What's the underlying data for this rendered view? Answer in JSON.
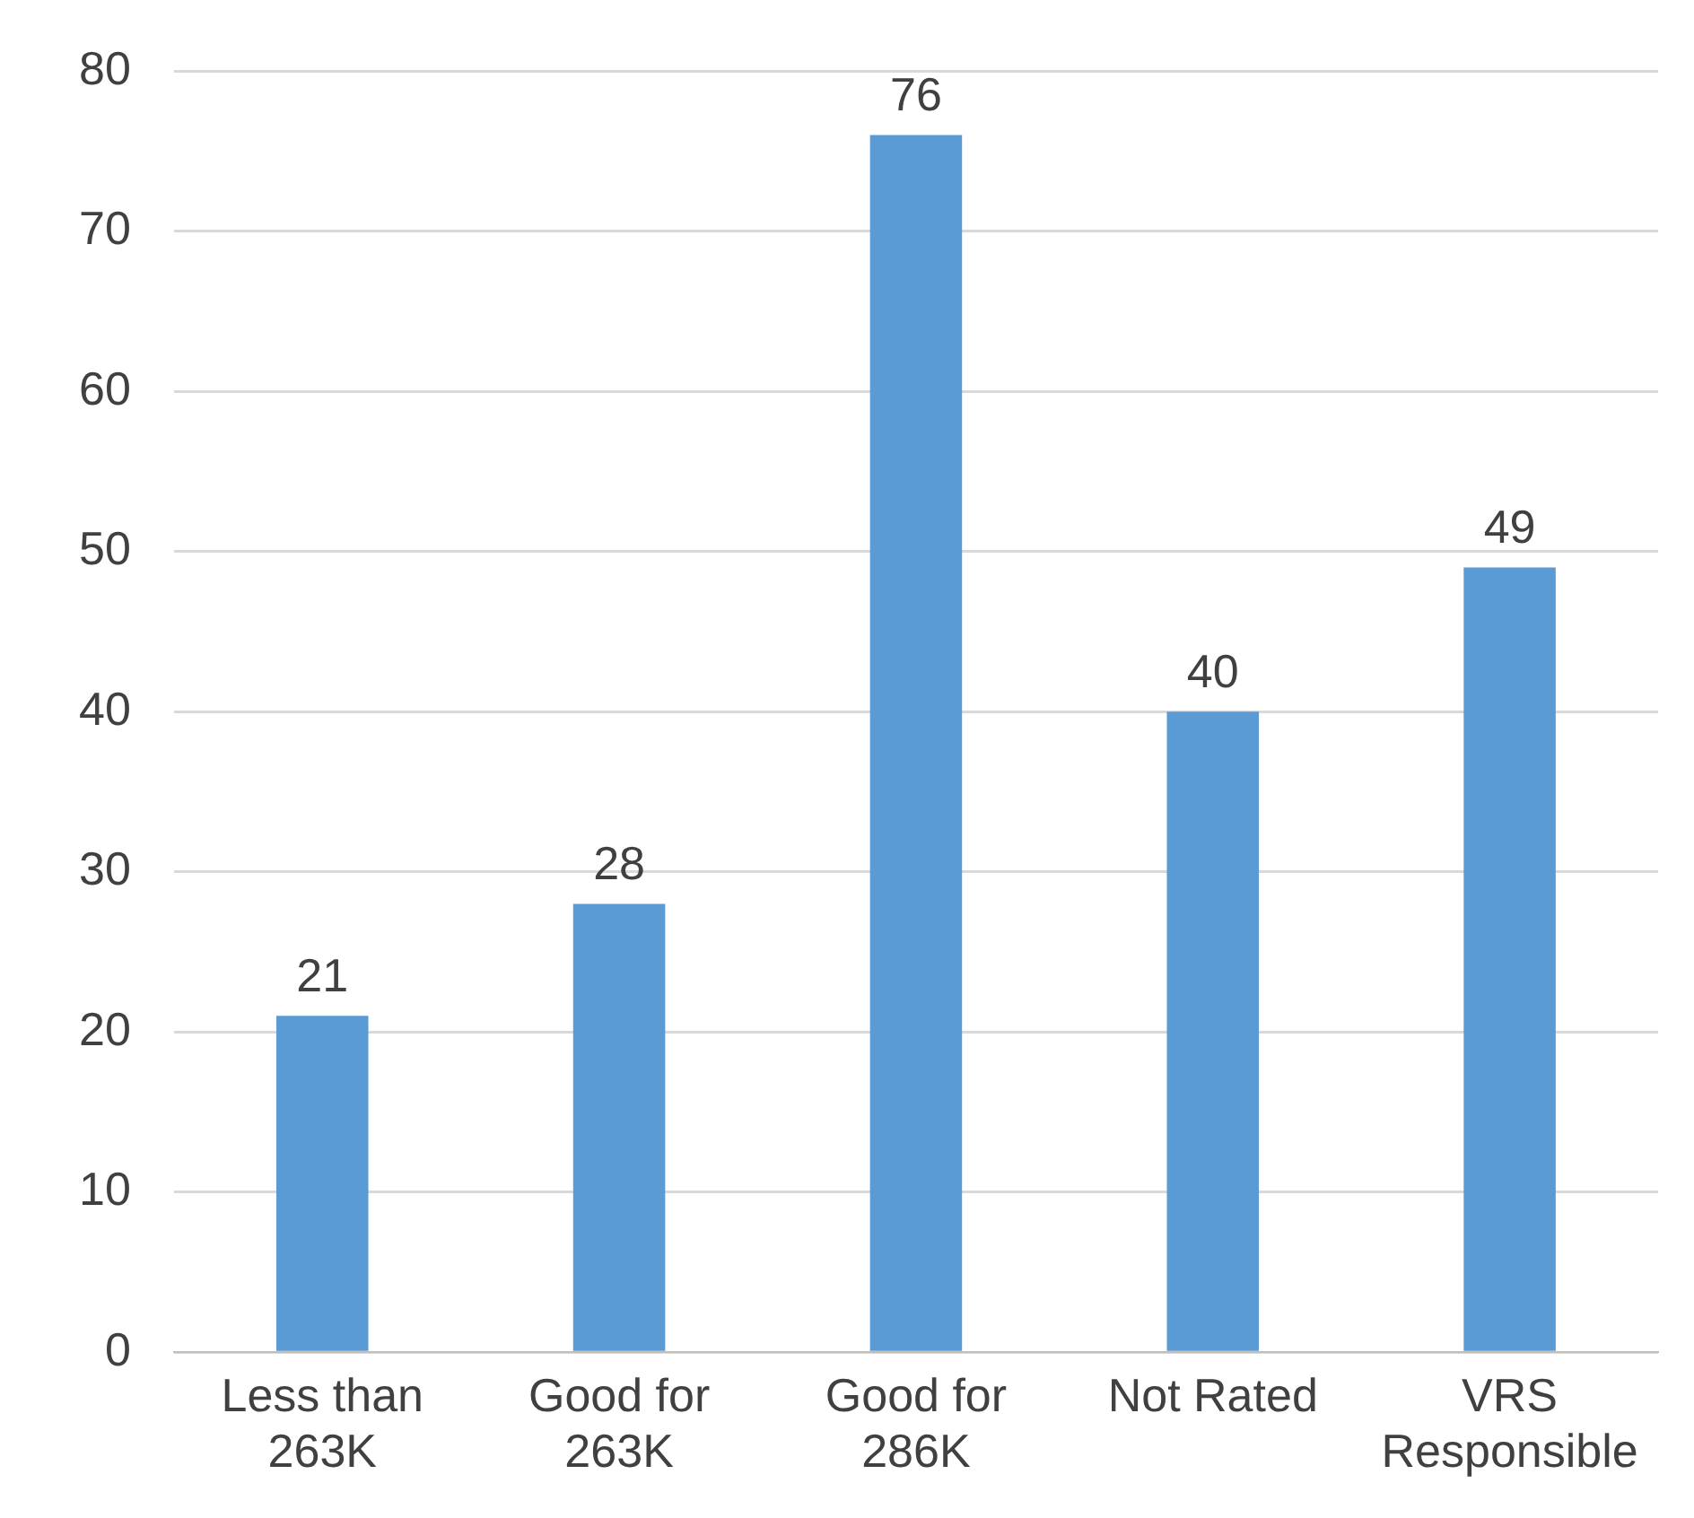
{
  "chart_data": {
    "type": "bar",
    "categories": [
      "Less than 263K",
      "Good for 263K",
      "Good for 286K",
      "Not Rated",
      "VRS Responsible"
    ],
    "values": [
      21,
      28,
      76,
      40,
      49
    ],
    "color": "#5b9bd5",
    "ylim": [
      0,
      80
    ],
    "yticks": [
      0,
      10,
      20,
      30,
      40,
      50,
      60,
      70,
      80
    ],
    "grid": "y",
    "data_labels": true,
    "legend": false
  }
}
